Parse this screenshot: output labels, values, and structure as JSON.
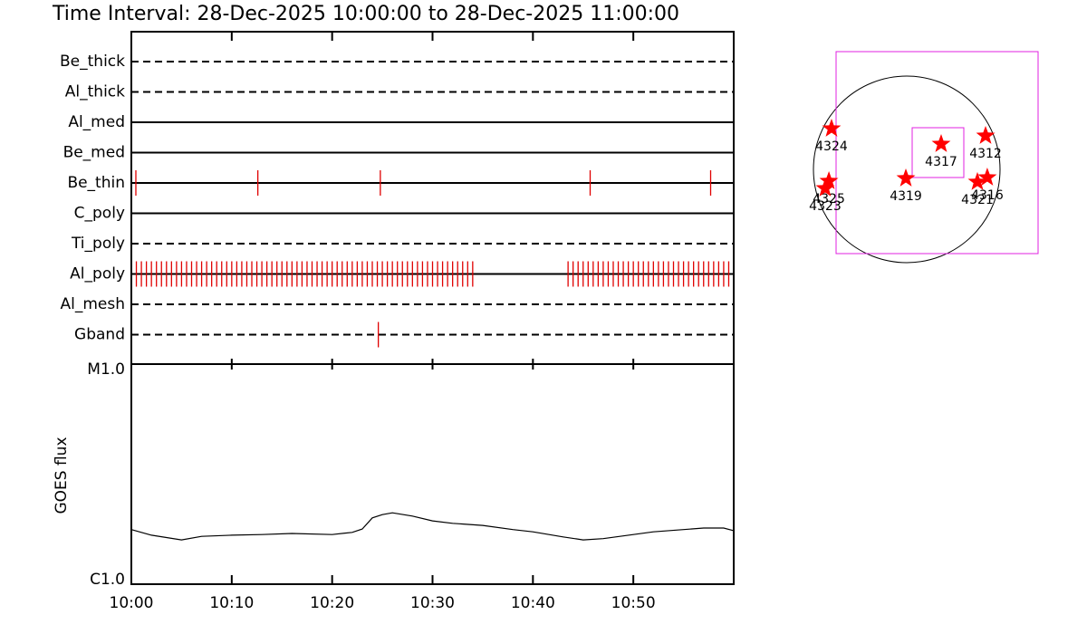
{
  "chart_data": [
    {
      "type": "timeline",
      "title": "Time Interval: 28-Dec-2025 10:00:00 to 28-Dec-2025 11:00:00",
      "xlim": [
        0,
        60
      ],
      "color": "#e00000",
      "series": [
        {
          "name": "Be_thick",
          "line_style": "dashed",
          "values": []
        },
        {
          "name": "Al_thick",
          "line_style": "dashed",
          "values": []
        },
        {
          "name": "Al_med",
          "line_style": "solid",
          "values": []
        },
        {
          "name": "Be_med",
          "line_style": "solid",
          "values": []
        },
        {
          "name": "Be_thin",
          "line_style": "solid",
          "values": [
            0.45,
            12.6,
            24.8,
            45.7,
            57.7
          ]
        },
        {
          "name": "C_poly",
          "line_style": "solid",
          "values": []
        },
        {
          "name": "Ti_poly",
          "line_style": "dashed",
          "values": []
        },
        {
          "name": "Al_poly",
          "line_style": "solid",
          "values": [
            0.5,
            1,
            1.5,
            2,
            2.5,
            3,
            3.5,
            4,
            4.5,
            5,
            5.5,
            6,
            6.5,
            7,
            7.5,
            8,
            8.5,
            9,
            9.5,
            10,
            10.5,
            11,
            11.5,
            12,
            12.5,
            13,
            13.5,
            14,
            14.5,
            15,
            15.5,
            16,
            16.5,
            17,
            17.5,
            18,
            18.5,
            19,
            19.5,
            20,
            20.5,
            21,
            21.5,
            22,
            22.5,
            23,
            23.5,
            24,
            24.5,
            25,
            25.5,
            26,
            26.5,
            27,
            27.5,
            28,
            28.5,
            29,
            29.5,
            30,
            30.5,
            31,
            31.5,
            32,
            32.5,
            33,
            33.5,
            34,
            43.5,
            44,
            44.5,
            45,
            45.5,
            46,
            46.5,
            47,
            47.5,
            48,
            48.5,
            49,
            49.5,
            50,
            50.5,
            51,
            51.5,
            52,
            52.5,
            53,
            53.5,
            54,
            54.5,
            55,
            55.5,
            56,
            56.5,
            57,
            57.5,
            58,
            58.5,
            59,
            59.5
          ]
        },
        {
          "name": "Al_mesh",
          "line_style": "dashed",
          "values": []
        },
        {
          "name": "Gband",
          "line_style": "dashed",
          "values": [
            24.6
          ]
        }
      ]
    },
    {
      "type": "line",
      "ylabel": "GOES flux",
      "log_scale": true,
      "color": "#000000",
      "xlim": [
        0,
        60
      ],
      "xticks": [
        {
          "value": 0,
          "label": "10:00"
        },
        {
          "value": 10,
          "label": "10:10"
        },
        {
          "value": 20,
          "label": "10:20"
        },
        {
          "value": 30,
          "label": "10:30"
        },
        {
          "value": 40,
          "label": "10:40"
        },
        {
          "value": 50,
          "label": "10:50"
        }
      ],
      "ylim": [
        1e-06,
        1e-05
      ],
      "yticks": [
        {
          "value": 1e-06,
          "label": "C1.0"
        },
        {
          "value": 1e-05,
          "label": "M1.0"
        }
      ],
      "x": [
        0,
        2,
        5,
        7,
        10,
        13,
        16,
        20,
        22,
        23,
        24,
        25,
        26,
        28,
        30,
        32,
        35,
        38,
        40,
        43,
        45,
        47,
        50,
        52,
        55,
        57,
        59,
        60
      ],
      "values": [
        1.77e-06,
        1.67e-06,
        1.59e-06,
        1.65e-06,
        1.67e-06,
        1.68e-06,
        1.7e-06,
        1.68e-06,
        1.72e-06,
        1.78e-06,
        2e-06,
        2.07e-06,
        2.11e-06,
        2.04e-06,
        1.94e-06,
        1.89e-06,
        1.85e-06,
        1.77e-06,
        1.73e-06,
        1.64e-06,
        1.59e-06,
        1.61e-06,
        1.68e-06,
        1.73e-06,
        1.77e-06,
        1.8e-06,
        1.8e-06,
        1.75e-06
      ]
    },
    {
      "type": "scatter",
      "color": "#ff0000",
      "xlim": [
        -1200,
        1200
      ],
      "ylim": [
        -1200,
        1200
      ],
      "labels": [
        "4324",
        "4325",
        "4323",
        "4317",
        "4312",
        "4319",
        "4321",
        "4316"
      ],
      "x": [
        -774,
        -801,
        -839,
        354,
        811,
        -9,
        727,
        829
      ],
      "y": [
        419,
        -121,
        -196,
        261,
        345,
        -93,
        -130,
        -84
      ]
    }
  ]
}
